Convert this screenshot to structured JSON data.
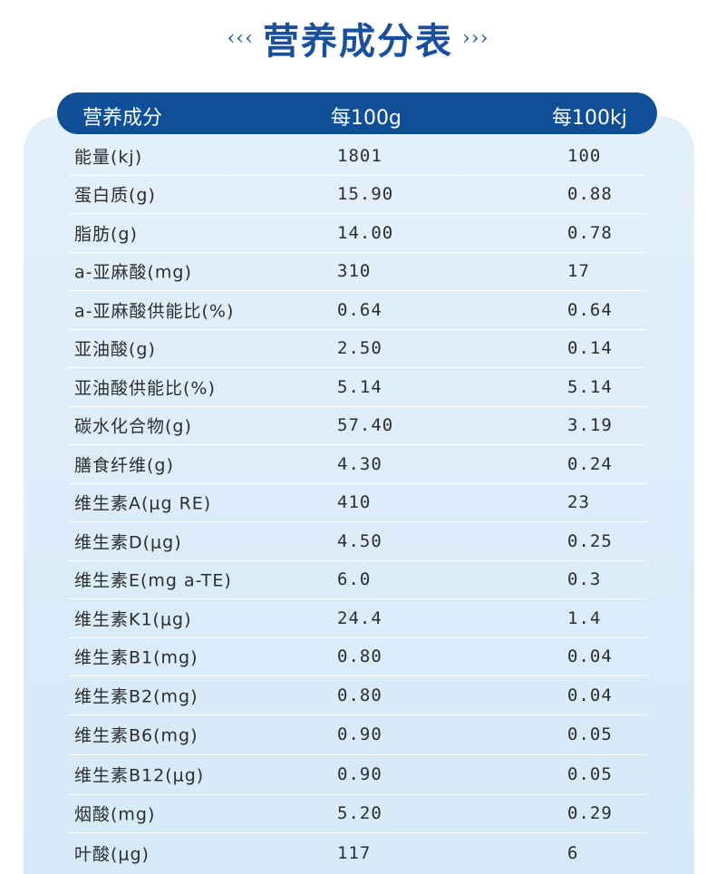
{
  "title": {
    "left_deco": "‹‹‹",
    "text": "营养成分表",
    "right_deco": "›››"
  },
  "header": {
    "col1": "营养成分",
    "col2": "每100g",
    "col3": "每100kj"
  },
  "rows": [
    {
      "name": "能量(kj)",
      "per100g": "1801",
      "per100kj": "100"
    },
    {
      "name": "蛋白质(g)",
      "per100g": "15.90",
      "per100kj": "0.88"
    },
    {
      "name": "脂肪(g)",
      "per100g": "14.00",
      "per100kj": "0.78"
    },
    {
      "name": "a-亚麻酸(mg)",
      "per100g": "310",
      "per100kj": "17"
    },
    {
      "name": "a-亚麻酸供能比(%)",
      "per100g": "0.64",
      "per100kj": "0.64"
    },
    {
      "name": "亚油酸(g)",
      "per100g": "2.50",
      "per100kj": "0.14"
    },
    {
      "name": "亚油酸供能比(%)",
      "per100g": "5.14",
      "per100kj": "5.14"
    },
    {
      "name": "碳水化合物(g)",
      "per100g": "57.40",
      "per100kj": "3.19"
    },
    {
      "name": "膳食纤维(g)",
      "per100g": "4.30",
      "per100kj": "0.24"
    },
    {
      "name": "维生素A(μg RE)",
      "per100g": "410",
      "per100kj": "23"
    },
    {
      "name": "维生素D(μg)",
      "per100g": "4.50",
      "per100kj": "0.25"
    },
    {
      "name": "维生素E(mg a-TE)",
      "per100g": "6.0",
      "per100kj": "0.3"
    },
    {
      "name": "维生素K1(μg)",
      "per100g": "24.4",
      "per100kj": "1.4"
    },
    {
      "name": "维生素B1(mg)",
      "per100g": "0.80",
      "per100kj": "0.04"
    },
    {
      "name": "维生素B2(mg)",
      "per100g": "0.80",
      "per100kj": "0.04"
    },
    {
      "name": "维生素B6(mg)",
      "per100g": "0.90",
      "per100kj": "0.05"
    },
    {
      "name": "维生素B12(μg)",
      "per100g": "0.90",
      "per100kj": "0.05"
    },
    {
      "name": "烟酸(mg)",
      "per100g": "5.20",
      "per100kj": "0.29"
    },
    {
      "name": "叶酸(μg)",
      "per100g": "117",
      "per100kj": "6"
    }
  ]
}
